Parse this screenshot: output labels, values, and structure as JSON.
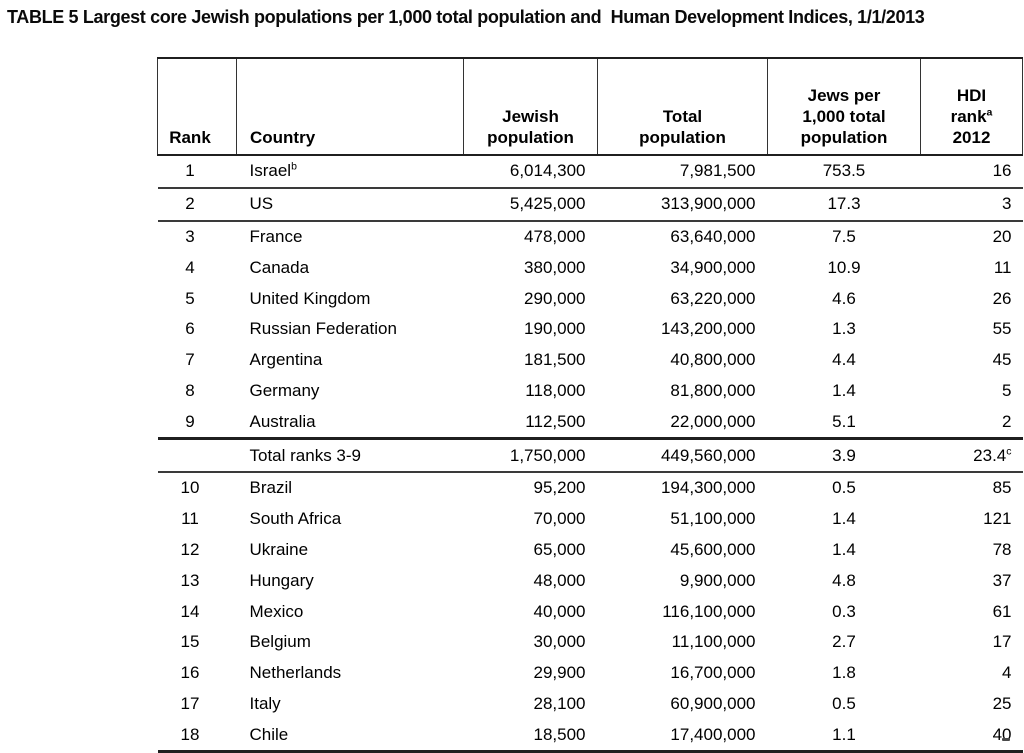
{
  "title": "TABLE 5 Largest core Jewish populations per 1,000 total population and  Human Development Indices, 1/1/2013",
  "table": {
    "columns": [
      {
        "id": "rank",
        "header_lines": [
          {
            "text": "Rank"
          }
        ]
      },
      {
        "id": "country",
        "header_lines": [
          {
            "text": "Country"
          }
        ]
      },
      {
        "id": "jewish_population",
        "header_lines": [
          {
            "text": "Jewish"
          },
          {
            "text": "population"
          }
        ]
      },
      {
        "id": "total_population",
        "header_lines": [
          {
            "text": "Total"
          },
          {
            "text": "population"
          }
        ]
      },
      {
        "id": "jews_per_1000",
        "header_lines": [
          {
            "text": "Jews per"
          },
          {
            "text": "1,000 total"
          },
          {
            "text": "population"
          }
        ]
      },
      {
        "id": "hdi_rank",
        "header_lines": [
          {
            "text": "HDI"
          },
          {
            "text": "rank",
            "sup": "a"
          },
          {
            "text": "2012"
          }
        ]
      }
    ],
    "rows": [
      {
        "rank": "1",
        "country": "Israel",
        "sups": {
          "country": "b"
        },
        "jewish_population": "6,014,300",
        "total_population": "7,981,500",
        "jews_per_1000": "753.5",
        "hdi_rank": "16",
        "rule_after": "medium"
      },
      {
        "rank": "2",
        "country": "US",
        "jewish_population": "5,425,000",
        "total_population": "313,900,000",
        "jews_per_1000": "17.3",
        "hdi_rank": "3",
        "rule_after": "medium"
      },
      {
        "rank": "3",
        "country": "France",
        "jewish_population": "478,000",
        "total_population": "63,640,000",
        "jews_per_1000": "7.5",
        "hdi_rank": "20"
      },
      {
        "rank": "4",
        "country": "Canada",
        "jewish_population": "380,000",
        "total_population": "34,900,000",
        "jews_per_1000": "10.9",
        "hdi_rank": "11"
      },
      {
        "rank": "5",
        "country": "United Kingdom",
        "jewish_population": "290,000",
        "total_population": "63,220,000",
        "jews_per_1000": "4.6",
        "hdi_rank": "26"
      },
      {
        "rank": "6",
        "country": "Russian Federation",
        "jewish_population": "190,000",
        "total_population": "143,200,000",
        "jews_per_1000": "1.3",
        "hdi_rank": "55"
      },
      {
        "rank": "7",
        "country": "Argentina",
        "jewish_population": "181,500",
        "total_population": "40,800,000",
        "jews_per_1000": "4.4",
        "hdi_rank": "45"
      },
      {
        "rank": "8",
        "country": "Germany",
        "jewish_population": "118,000",
        "total_population": "81,800,000",
        "jews_per_1000": "1.4",
        "hdi_rank": "5"
      },
      {
        "rank": "9",
        "country": "Australia",
        "jewish_population": "112,500",
        "total_population": "22,000,000",
        "jews_per_1000": "5.1",
        "hdi_rank": "2",
        "rule_after": "strong"
      },
      {
        "rank": "",
        "country": "Total ranks 3-9",
        "jewish_population": "1,750,000",
        "total_population": "449,560,000",
        "jews_per_1000": "3.9",
        "hdi_rank": "23.4",
        "sups": {
          "hdi_rank": "c"
        },
        "rule_after": "medium",
        "is_total": true
      },
      {
        "rank": "10",
        "country": "Brazil",
        "jewish_population": "95,200",
        "total_population": "194,300,000",
        "jews_per_1000": "0.5",
        "hdi_rank": "85"
      },
      {
        "rank": "11",
        "country": "South Africa",
        "jewish_population": "70,000",
        "total_population": "51,100,000",
        "jews_per_1000": "1.4",
        "hdi_rank": "121"
      },
      {
        "rank": "12",
        "country": "Ukraine",
        "jewish_population": "65,000",
        "total_population": "45,600,000",
        "jews_per_1000": "1.4",
        "hdi_rank": "78"
      },
      {
        "rank": "13",
        "country": "Hungary",
        "jewish_population": "48,000",
        "total_population": "9,900,000",
        "jews_per_1000": "4.8",
        "hdi_rank": "37"
      },
      {
        "rank": "14",
        "country": "Mexico",
        "jewish_population": "40,000",
        "total_population": "116,100,000",
        "jews_per_1000": "0.3",
        "hdi_rank": "61"
      },
      {
        "rank": "15",
        "country": "Belgium",
        "jewish_population": "30,000",
        "total_population": "11,100,000",
        "jews_per_1000": "2.7",
        "hdi_rank": "17"
      },
      {
        "rank": "16",
        "country": "Netherlands",
        "jewish_population": "29,900",
        "total_population": "16,700,000",
        "jews_per_1000": "1.8",
        "hdi_rank": "4"
      },
      {
        "rank": "17",
        "country": "Italy",
        "jewish_population": "28,100",
        "total_population": "60,900,000",
        "jews_per_1000": "0.5",
        "hdi_rank": "25"
      },
      {
        "rank": "18",
        "country": "Chile",
        "jewish_population": "18,500",
        "total_population": "17,400,000",
        "jews_per_1000": "1.1",
        "hdi_rank": "40"
      }
    ]
  }
}
